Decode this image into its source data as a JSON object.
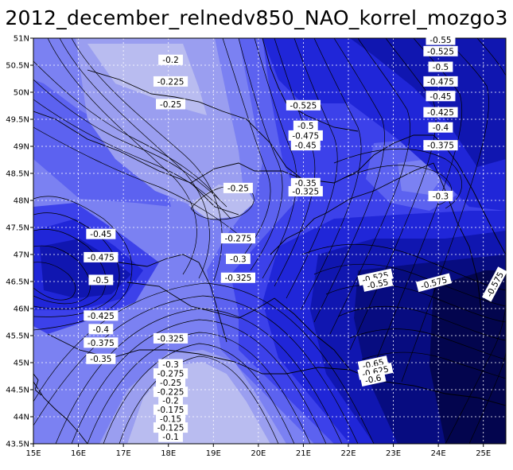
{
  "title": "2012_december_relnedv850_NAO_korrel_mozgo3",
  "colors": {
    "level_1": "#b9bcf0",
    "level_2": "#9a9ef0",
    "level_3": "#7b81f2",
    "level_4": "#5c62f0",
    "level_5": "#3c41ea",
    "level_6": "#2026d8",
    "level_7": "#1016b0",
    "level_8": "#070c80",
    "level_9": "#03054e",
    "grid": "#ffffff",
    "contour": "#000000"
  },
  "axes": {
    "x_ticks": [
      "15E",
      "16E",
      "17E",
      "18E",
      "19E",
      "20E",
      "21E",
      "22E",
      "23E",
      "24E",
      "25E"
    ],
    "y_ticks": [
      "51N",
      "50.5N",
      "50N",
      "49.5N",
      "49N",
      "48.5N",
      "48N",
      "47.5N",
      "47N",
      "46.5N",
      "46N",
      "45.5N",
      "45N",
      "44.5N",
      "44N",
      "43.5N"
    ],
    "grid": "dotted"
  },
  "contour_labels": [
    {
      "text": "-0.2",
      "lon": 18.05,
      "lat": 50.6
    },
    {
      "text": "-0.225",
      "lon": 18.05,
      "lat": 50.2
    },
    {
      "text": "-0.25",
      "lon": 18.05,
      "lat": 49.78
    },
    {
      "text": "-0.525",
      "lon": 21.0,
      "lat": 49.76
    },
    {
      "text": "-0.5",
      "lon": 21.05,
      "lat": 49.38
    },
    {
      "text": "-0.475",
      "lon": 21.05,
      "lat": 49.2
    },
    {
      "text": "-0.45",
      "lon": 21.05,
      "lat": 49.02
    },
    {
      "text": "-0.35",
      "lon": 21.05,
      "lat": 48.32
    },
    {
      "text": "-0.325",
      "lon": 21.05,
      "lat": 48.17
    },
    {
      "text": "-0.25",
      "lon": 19.55,
      "lat": 48.23
    },
    {
      "text": "-0.3",
      "lon": 24.05,
      "lat": 48.08
    },
    {
      "text": "-0.275",
      "lon": 19.55,
      "lat": 47.3
    },
    {
      "text": "-0.3",
      "lon": 19.55,
      "lat": 46.92
    },
    {
      "text": "-0.325",
      "lon": 19.55,
      "lat": 46.57
    },
    {
      "text": "-0.45",
      "lon": 16.5,
      "lat": 47.38
    },
    {
      "text": "-0.475",
      "lon": 16.5,
      "lat": 46.95
    },
    {
      "text": "-0.5",
      "lon": 16.5,
      "lat": 46.53
    },
    {
      "text": "-0.425",
      "lon": 16.5,
      "lat": 45.87
    },
    {
      "text": "-0.4",
      "lon": 16.5,
      "lat": 45.62
    },
    {
      "text": "-0.375",
      "lon": 16.5,
      "lat": 45.37
    },
    {
      "text": "-0.35",
      "lon": 16.5,
      "lat": 45.07
    },
    {
      "text": "-0.325",
      "lon": 18.05,
      "lat": 45.45
    },
    {
      "text": "-0.3",
      "lon": 18.05,
      "lat": 44.97
    },
    {
      "text": "-0.275",
      "lon": 18.05,
      "lat": 44.8
    },
    {
      "text": "-0.25",
      "lon": 18.05,
      "lat": 44.63
    },
    {
      "text": "-0.225",
      "lon": 18.05,
      "lat": 44.46
    },
    {
      "text": "-0.2",
      "lon": 18.05,
      "lat": 44.3
    },
    {
      "text": "-0.175",
      "lon": 18.05,
      "lat": 44.13
    },
    {
      "text": "-0.15",
      "lon": 18.05,
      "lat": 43.96
    },
    {
      "text": "-0.125",
      "lon": 18.05,
      "lat": 43.8
    },
    {
      "text": "-0.1",
      "lon": 18.05,
      "lat": 43.63
    },
    {
      "text": "-0.55",
      "lon": 24.05,
      "lat": 50.97
    },
    {
      "text": "-0.525",
      "lon": 24.05,
      "lat": 50.76
    },
    {
      "text": "-0.5",
      "lon": 24.05,
      "lat": 50.47
    },
    {
      "text": "-0.475",
      "lon": 24.05,
      "lat": 50.2
    },
    {
      "text": "-0.45",
      "lon": 24.05,
      "lat": 49.93
    },
    {
      "text": "-0.425",
      "lon": 24.05,
      "lat": 49.63
    },
    {
      "text": "-0.4",
      "lon": 24.05,
      "lat": 49.35
    },
    {
      "text": "-0.375",
      "lon": 24.05,
      "lat": 49.02
    },
    {
      "text": "-0.525",
      "lon": 22.6,
      "lat": 46.58,
      "rotate": -12
    },
    {
      "text": "-0.55",
      "lon": 22.65,
      "lat": 46.46,
      "rotate": -12
    },
    {
      "text": "-0.575",
      "lon": 23.9,
      "lat": 46.48,
      "rotate": -15
    },
    {
      "text": "-0.575",
      "lon": 25.25,
      "lat": 46.45,
      "rotate": -62
    },
    {
      "text": "-0.65",
      "lon": 22.55,
      "lat": 44.98,
      "rotate": -12
    },
    {
      "text": "-0.625",
      "lon": 22.6,
      "lat": 44.84,
      "rotate": -12
    },
    {
      "text": "-0.6",
      "lon": 22.55,
      "lat": 44.7,
      "rotate": -12
    }
  ]
}
